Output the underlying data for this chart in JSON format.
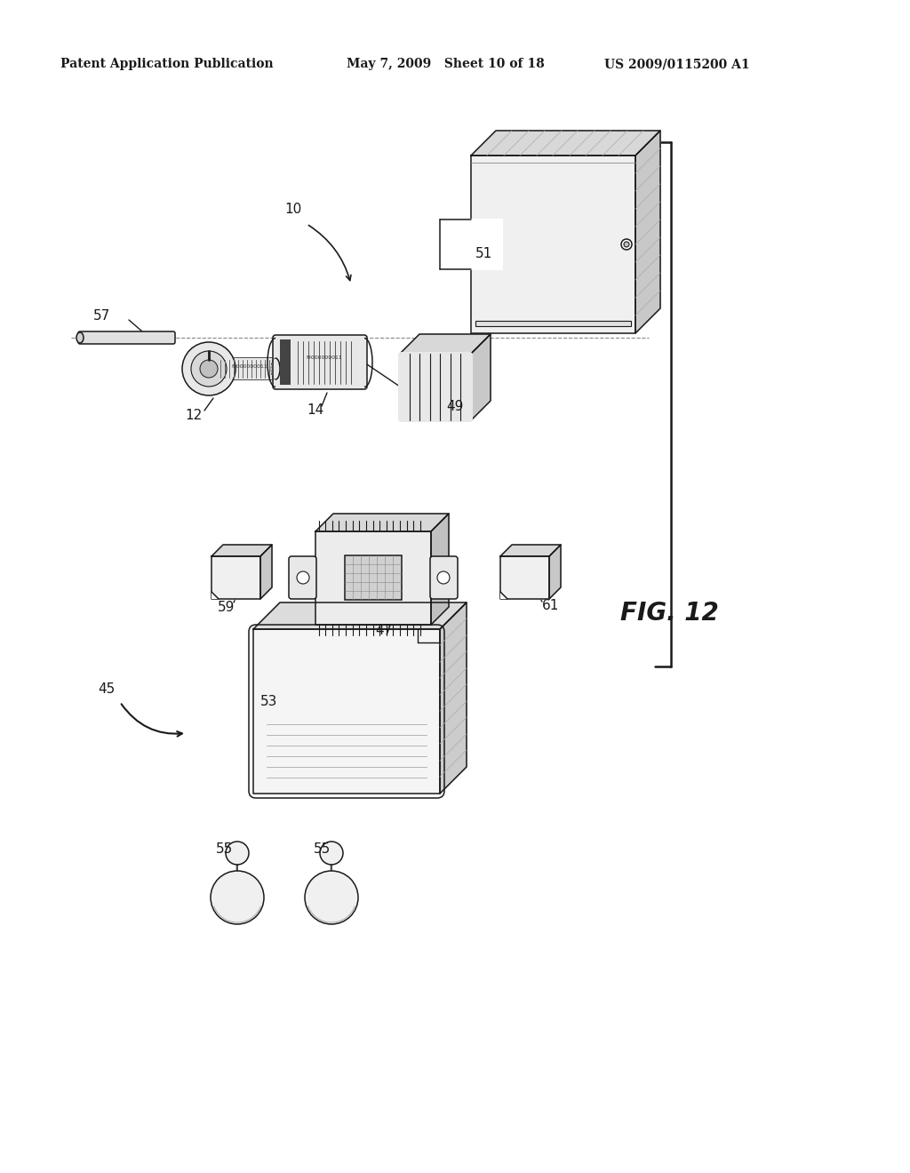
{
  "bg_color": "#ffffff",
  "line_color": "#1a1a1a",
  "header_left": "Patent Application Publication",
  "header_mid": "May 7, 2009   Sheet 10 of 18",
  "header_right": "US 2009/0115200 A1",
  "fig_label": "FIG. 12",
  "lw": 1.1
}
